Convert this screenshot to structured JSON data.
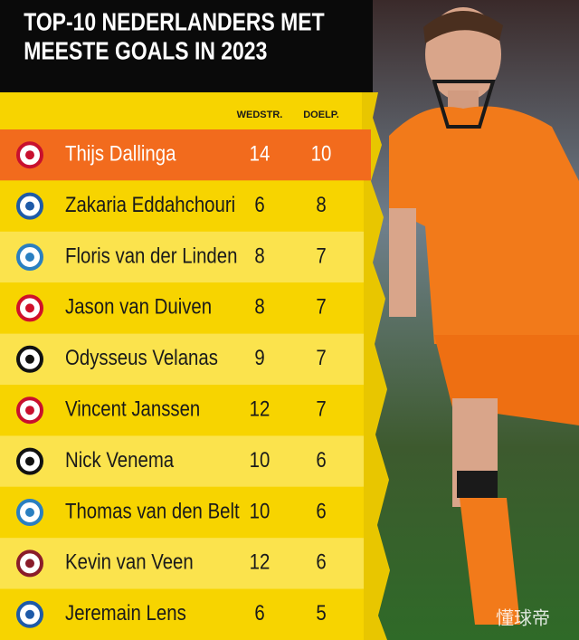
{
  "header": {
    "title_lines": [
      "TOP-10 NEDERLANDERS MET",
      "MEESTE GOALS IN 2023"
    ]
  },
  "table": {
    "columns": [
      "WEDSTR.",
      "DOELP."
    ],
    "rows": [
      [
        "Thijs Dallinga",
        14,
        10
      ],
      [
        "Zakaria Eddahchouri",
        6,
        8
      ],
      [
        "Floris van der Linden",
        8,
        7
      ],
      [
        "Jason van Duiven",
        8,
        7
      ],
      [
        "Odysseus Velanas",
        9,
        7
      ],
      [
        "Vincent Janssen",
        12,
        7
      ],
      [
        "Nick Venema",
        10,
        6
      ],
      [
        "Thomas van den Belt",
        10,
        6
      ],
      [
        "Kevin van Veen",
        12,
        6
      ],
      [
        "Jeremain Lens",
        6,
        5
      ]
    ]
  },
  "watermark": "懂球帝"
}
